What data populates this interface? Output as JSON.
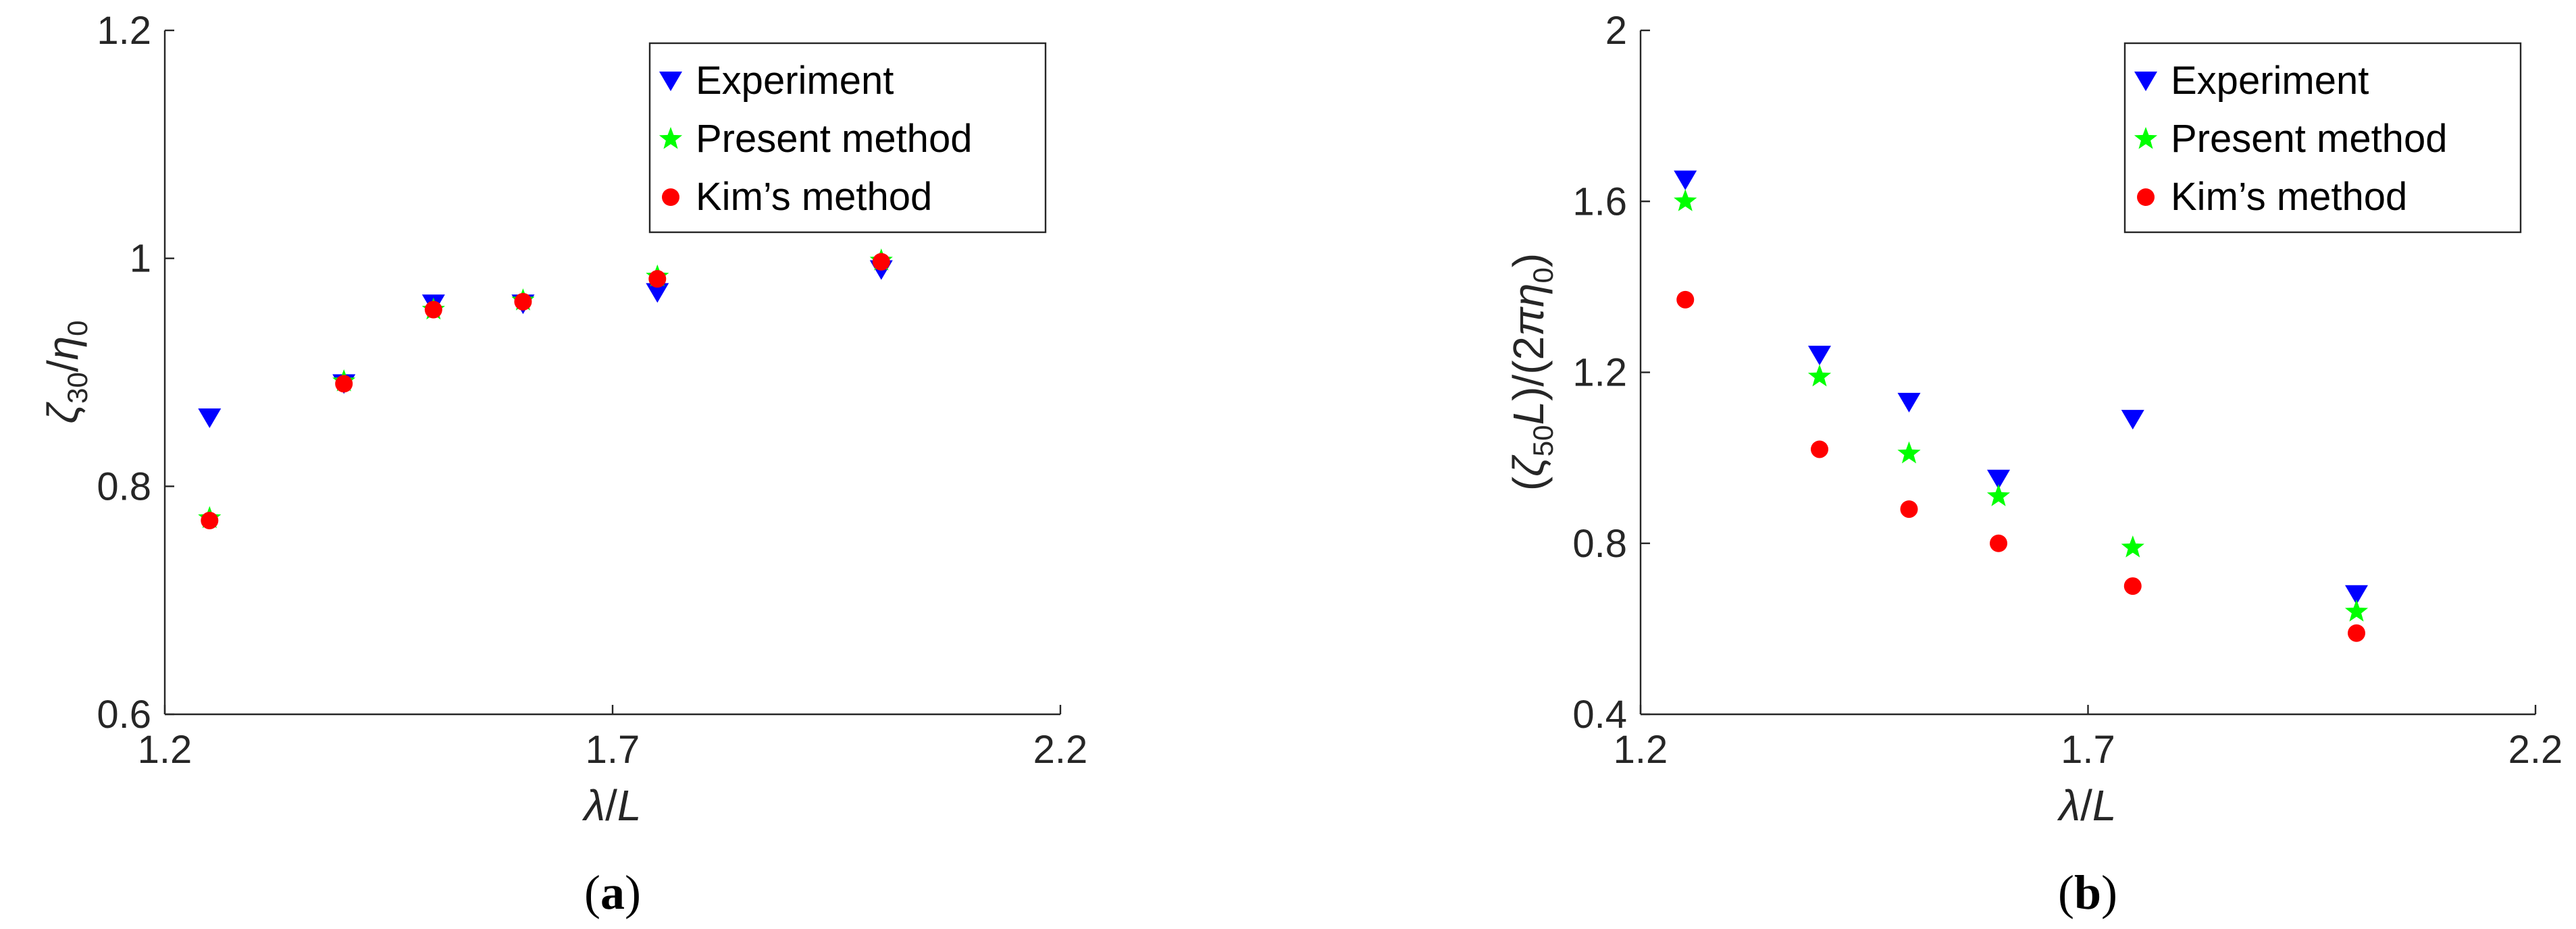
{
  "chart_data": [
    {
      "type": "scatter",
      "panel_label": "a",
      "xlabel": "λ/L",
      "ylabel": "ζ30/η0",
      "xlim": [
        1.2,
        2.2
      ],
      "ylim": [
        0.6,
        1.2
      ],
      "xticks": [
        "1.2",
        "1.7",
        "2.2"
      ],
      "yticks": [
        "0.6",
        "0.8",
        "1",
        "1.2"
      ],
      "grid": false,
      "legend_position": "top-right",
      "series": [
        {
          "name": "Experiment",
          "marker": "triangle-down",
          "color": "#0000ff",
          "x": [
            1.25,
            1.4,
            1.5,
            1.6,
            1.75,
            2.0
          ],
          "y": [
            0.86,
            0.89,
            0.96,
            0.96,
            0.97,
            0.99
          ]
        },
        {
          "name": "Present method",
          "marker": "star",
          "color": "#00ff00",
          "x": [
            1.25,
            1.4,
            1.5,
            1.6,
            1.75,
            2.0
          ],
          "y": [
            0.772,
            0.892,
            0.955,
            0.963,
            0.984,
            0.998
          ]
        },
        {
          "name": "Kim’s method",
          "marker": "circle",
          "color": "#ff0000",
          "x": [
            1.25,
            1.4,
            1.5,
            1.6,
            1.75,
            2.0
          ],
          "y": [
            0.77,
            0.89,
            0.955,
            0.962,
            0.982,
            0.997
          ]
        }
      ]
    },
    {
      "type": "scatter",
      "panel_label": "b",
      "xlabel": "λ/L",
      "ylabel": "(ζ50L)/(2πη0)",
      "xlim": [
        1.2,
        2.2
      ],
      "ylim": [
        0.4,
        2.0
      ],
      "xticks": [
        "1.2",
        "1.7",
        "2.2"
      ],
      "yticks": [
        "0.4",
        "0.8",
        "1.2",
        "1.6",
        "2"
      ],
      "grid": false,
      "legend_position": "top-right",
      "series": [
        {
          "name": "Experiment",
          "marker": "triangle-down",
          "color": "#0000ff",
          "x": [
            1.25,
            1.4,
            1.5,
            1.6,
            1.75,
            2.0
          ],
          "y": [
            1.65,
            1.24,
            1.13,
            0.95,
            1.09,
            0.68
          ]
        },
        {
          "name": "Present method",
          "marker": "star",
          "color": "#00ff00",
          "x": [
            1.25,
            1.4,
            1.5,
            1.6,
            1.75,
            2.0
          ],
          "y": [
            1.6,
            1.19,
            1.01,
            0.91,
            0.79,
            0.64
          ]
        },
        {
          "name": "Kim’s method",
          "marker": "circle",
          "color": "#ff0000",
          "x": [
            1.25,
            1.4,
            1.5,
            1.6,
            1.75,
            2.0
          ],
          "y": [
            1.37,
            1.02,
            0.88,
            0.8,
            0.7,
            0.59
          ]
        }
      ]
    }
  ]
}
